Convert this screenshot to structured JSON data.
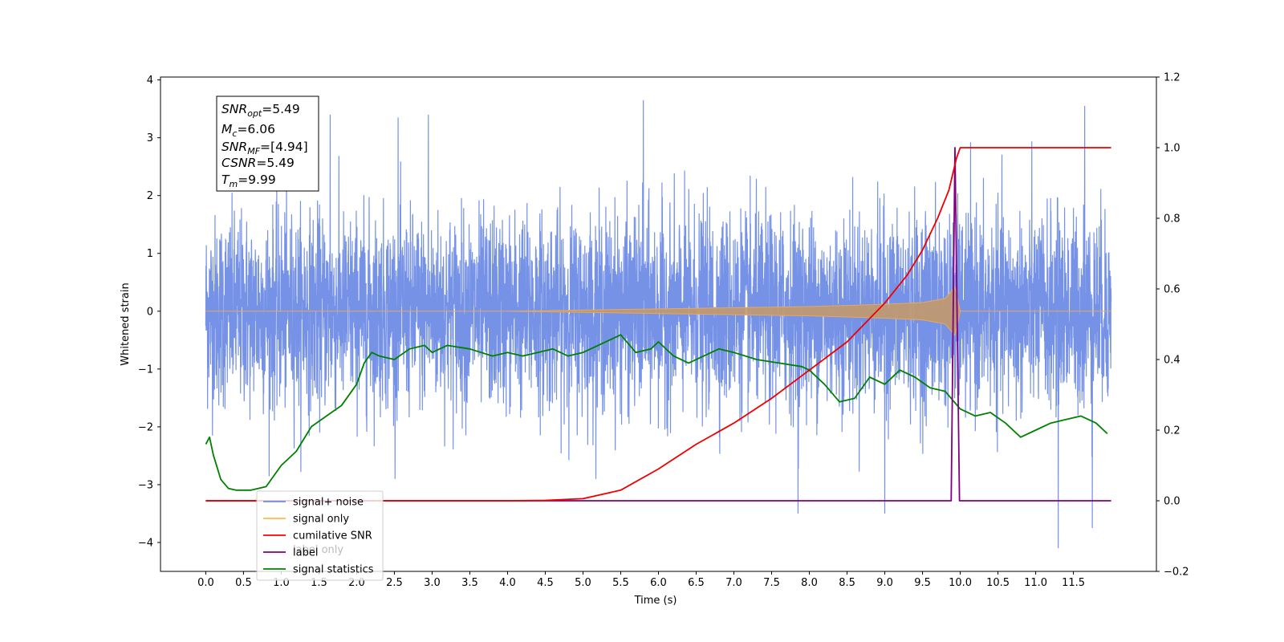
{
  "chart_data": {
    "type": "line",
    "title": "",
    "xlabel": "Time (s)",
    "ylabel_left": "Whitened strain",
    "ylabel_right": "",
    "xlim": [
      -0.6,
      12.6
    ],
    "ylim_left": [
      -4.5,
      4.05
    ],
    "ylim_right": [
      -0.2,
      1.2
    ],
    "x_ticks": [
      "0.0",
      "0.5",
      "1.0",
      "1.5",
      "2.0",
      "2.5",
      "3.0",
      "3.5",
      "4.0",
      "4.5",
      "5.0",
      "5.5",
      "6.0",
      "6.5",
      "7.0",
      "7.5",
      "8.0",
      "8.5",
      "9.0",
      "9.5",
      "10.0",
      "10.5",
      "11.0",
      "11.5"
    ],
    "y_left_ticks": [
      "4",
      "3",
      "2",
      "1",
      "0",
      "−1",
      "−2",
      "−3",
      "−4"
    ],
    "y_right_ticks": [
      "1.2",
      "1.0",
      "0.8",
      "0.6",
      "0.4",
      "0.2",
      "0.0",
      "−0.2"
    ],
    "annotation": [
      {
        "name": "SNR",
        "sub": "opt",
        "value": "=5.49"
      },
      {
        "name": "M",
        "sub": "c",
        "value": "=6.06"
      },
      {
        "name": "SNR",
        "sub": "MF",
        "value": "=[4.94]"
      },
      {
        "name": "CSNR",
        "sub": "",
        "value": "=5.49"
      },
      {
        "name": "T",
        "sub": "m",
        "value": "=9.99"
      }
    ],
    "legend": [
      {
        "label": "signal+ noise",
        "color": "#6f8ce6"
      },
      {
        "label": "signal only",
        "color": "#ffb84d"
      },
      {
        "label": "cumilative SNR",
        "color": "#ff0000"
      },
      {
        "label": "label",
        "color": "#800080"
      },
      {
        "label": "signal statistics",
        "color": "#008000"
      }
    ],
    "legend_overlap_text": "label only",
    "legend_placement": "lower-left",
    "series": [
      {
        "name": "signal+ noise",
        "axis": "left",
        "color": "#6f8ce6",
        "description_range": [
          -4.1,
          3.65
        ],
        "x_range": [
          0.0,
          12.0
        ],
        "peaks_x": [
          1.65,
          2.55,
          2.95,
          5.8,
          7.85,
          9.0,
          11.3,
          11.65,
          11.75
        ],
        "peaks_y": [
          3.4,
          3.35,
          3.4,
          3.65,
          -3.5,
          -3.5,
          -4.1,
          3.55,
          -3.75
        ]
      },
      {
        "name": "signal only",
        "axis": "left",
        "color": "#c8a07a",
        "x": [
          0,
          4.0,
          5.0,
          6.0,
          7.0,
          8.0,
          8.5,
          9.0,
          9.5,
          9.8,
          9.93,
          10.0,
          12.0
        ],
        "amp": [
          0.0,
          0.0,
          0.02,
          0.04,
          0.06,
          0.08,
          0.1,
          0.12,
          0.15,
          0.22,
          0.42,
          0.0,
          0.0
        ]
      },
      {
        "name": "cumilative SNR",
        "axis": "right",
        "color": "#ee0000",
        "x": [
          0,
          4.0,
          4.5,
          5.0,
          5.5,
          6.0,
          6.5,
          7.0,
          7.5,
          8.0,
          8.5,
          9.0,
          9.3,
          9.5,
          9.7,
          9.85,
          9.95,
          10.0,
          11.5,
          12.0
        ],
        "y": [
          0.0,
          0.0,
          0.001,
          0.006,
          0.03,
          0.09,
          0.16,
          0.22,
          0.29,
          0.37,
          0.45,
          0.56,
          0.64,
          0.71,
          0.8,
          0.88,
          0.97,
          1.0,
          1.0,
          1.0
        ]
      },
      {
        "name": "label",
        "axis": "right",
        "color": "#800080",
        "x": [
          0,
          9.88,
          9.93,
          9.99,
          10.0,
          12.0
        ],
        "y": [
          0.0,
          0.0,
          1.0,
          0.0,
          0.0,
          0.0
        ]
      },
      {
        "name": "signal statistics",
        "axis": "right",
        "color": "#008000",
        "x": [
          0.0,
          0.05,
          0.1,
          0.2,
          0.3,
          0.4,
          0.6,
          0.8,
          1.0,
          1.2,
          1.4,
          1.6,
          1.8,
          2.0,
          2.1,
          2.2,
          2.3,
          2.5,
          2.7,
          2.9,
          3.0,
          3.2,
          3.5,
          3.8,
          4.0,
          4.2,
          4.4,
          4.6,
          4.8,
          5.0,
          5.2,
          5.5,
          5.7,
          5.9,
          6.0,
          6.2,
          6.4,
          6.6,
          6.8,
          7.0,
          7.3,
          7.6,
          7.9,
          8.0,
          8.2,
          8.4,
          8.6,
          8.8,
          9.0,
          9.2,
          9.4,
          9.6,
          9.8,
          10.0,
          10.2,
          10.4,
          10.6,
          10.8,
          11.0,
          11.2,
          11.4,
          11.6,
          11.8,
          11.95
        ],
        "y": [
          0.16,
          0.18,
          0.13,
          0.06,
          0.035,
          0.03,
          0.03,
          0.04,
          0.1,
          0.14,
          0.21,
          0.24,
          0.27,
          0.33,
          0.39,
          0.42,
          0.41,
          0.4,
          0.43,
          0.44,
          0.42,
          0.44,
          0.43,
          0.41,
          0.42,
          0.41,
          0.42,
          0.43,
          0.41,
          0.42,
          0.44,
          0.47,
          0.42,
          0.43,
          0.45,
          0.41,
          0.39,
          0.41,
          0.43,
          0.42,
          0.4,
          0.39,
          0.38,
          0.37,
          0.33,
          0.28,
          0.29,
          0.35,
          0.33,
          0.37,
          0.35,
          0.32,
          0.31,
          0.26,
          0.24,
          0.25,
          0.22,
          0.18,
          0.2,
          0.22,
          0.23,
          0.24,
          0.22,
          0.19
        ]
      }
    ]
  }
}
